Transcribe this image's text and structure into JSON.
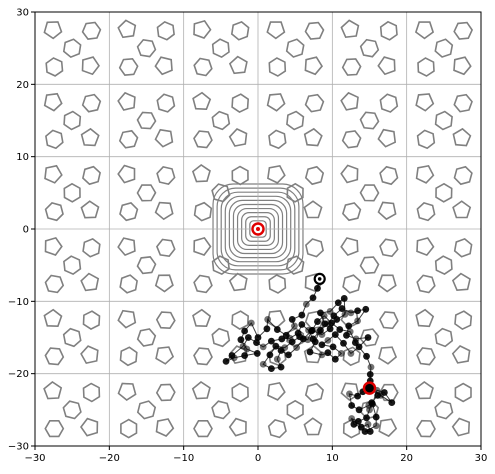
{
  "chart_data": {
    "type": "scatter",
    "title": "",
    "xlabel": "",
    "ylabel": "",
    "xlim": [
      -30,
      30
    ],
    "ylim": [
      -30,
      30
    ],
    "x_ticks": [
      -30,
      -20,
      -10,
      0,
      10,
      20,
      30
    ],
    "y_ticks": [
      -30,
      -20,
      -10,
      0,
      10,
      20,
      30
    ],
    "grid": true,
    "background": {
      "description": "gray contour lines of a quasi-periodic landscape with a concentric minimum at the origin",
      "contour_color": "#808080",
      "basin_center": [
        0,
        0
      ],
      "tile_period": 10
    },
    "colors": {
      "path": "#000000",
      "contour": "#808080",
      "grid": "#b0b0b0",
      "marker_ring": "#e00000"
    },
    "markers": [
      {
        "name": "start",
        "point": [
          8.3,
          -6.9
        ],
        "style": "black-ring"
      },
      {
        "name": "goal",
        "point": [
          0,
          0
        ],
        "style": "red-target"
      },
      {
        "name": "end",
        "point": [
          15,
          -22
        ],
        "style": "red-ring"
      }
    ],
    "series": [
      {
        "values": [
          [
            8.3,
            -6.9
          ],
          [
            8.0,
            -8.2
          ],
          [
            7.4,
            -9.5
          ],
          [
            6.5,
            -10.4
          ],
          [
            5.9,
            -11.9
          ],
          [
            4.6,
            -12.5
          ],
          [
            4.9,
            -13.4
          ],
          [
            3.8,
            -14.7
          ],
          [
            2.6,
            -13.9
          ],
          [
            1.3,
            -12.5
          ],
          [
            1.2,
            -13.8
          ],
          [
            0.0,
            -15.0
          ],
          [
            -0.9,
            -13.0
          ],
          [
            -1.8,
            -14.1
          ],
          [
            -2.3,
            -15.3
          ],
          [
            -1.5,
            -16.6
          ],
          [
            -0.1,
            -17.2
          ],
          [
            -1.8,
            -17.5
          ],
          [
            -3.2,
            -17.8
          ],
          [
            -4.3,
            -18.3
          ],
          [
            -3.5,
            -17.5
          ],
          [
            -2.0,
            -16.2
          ],
          [
            -1.3,
            -15.0
          ],
          [
            -0.2,
            -15.7
          ],
          [
            0.7,
            -16.3
          ],
          [
            1.8,
            -15.5
          ],
          [
            3.2,
            -15.2
          ],
          [
            4.3,
            -15.1
          ],
          [
            5.4,
            -14.4
          ],
          [
            5.9,
            -13.2
          ],
          [
            6.8,
            -14.0
          ],
          [
            7.4,
            -15.2
          ],
          [
            8.4,
            -14.0
          ],
          [
            9.4,
            -13.1
          ],
          [
            10.2,
            -12.0
          ],
          [
            11.3,
            -11.0
          ],
          [
            12.5,
            -11.6
          ],
          [
            13.4,
            -11.3
          ],
          [
            14.5,
            -11.1
          ],
          [
            13.4,
            -12.7
          ],
          [
            12.2,
            -13.4
          ],
          [
            11.9,
            -14.7
          ],
          [
            13.2,
            -15.2
          ],
          [
            14.8,
            -15.0
          ],
          [
            13.6,
            -16.3
          ],
          [
            12.5,
            -17.2
          ],
          [
            11.5,
            -15.8
          ],
          [
            10.4,
            -14.6
          ],
          [
            9.4,
            -15.4
          ],
          [
            8.6,
            -16.0
          ],
          [
            10.1,
            -16.3
          ],
          [
            11.2,
            -17.2
          ],
          [
            10.4,
            -18.0
          ],
          [
            9.4,
            -17.1
          ],
          [
            8.6,
            -17.4
          ],
          [
            7.0,
            -17.0
          ],
          [
            7.7,
            -15.6
          ],
          [
            8.2,
            -14.2
          ],
          [
            9.0,
            -13.1
          ],
          [
            8.4,
            -11.6
          ],
          [
            9.7,
            -11.4
          ],
          [
            10.8,
            -10.2
          ],
          [
            11.6,
            -9.6
          ],
          [
            11.7,
            -11.8
          ],
          [
            10.6,
            -12.5
          ],
          [
            9.7,
            -13.8
          ],
          [
            8.6,
            -14.6
          ],
          [
            7.3,
            -14.0
          ],
          [
            6.1,
            -15.2
          ],
          [
            5.2,
            -16.4
          ],
          [
            4.1,
            -17.4
          ],
          [
            3.1,
            -16.8
          ],
          [
            2.6,
            -18.0
          ],
          [
            3.1,
            -19.1
          ],
          [
            1.8,
            -19.3
          ],
          [
            0.7,
            -18.7
          ],
          [
            1.6,
            -17.4
          ],
          [
            2.4,
            -16.2
          ],
          [
            3.6,
            -16.4
          ],
          [
            4.6,
            -15.6
          ],
          [
            5.6,
            -14.9
          ],
          [
            6.7,
            -15.3
          ],
          [
            7.2,
            -14.1
          ],
          [
            8.0,
            -12.8
          ],
          [
            8.9,
            -12.0
          ],
          [
            9.9,
            -13.0
          ],
          [
            11.0,
            -13.9
          ],
          [
            12.4,
            -14.2
          ],
          [
            13.1,
            -15.7
          ],
          [
            14.6,
            -17.6
          ],
          [
            15.2,
            -19.1
          ],
          [
            15.1,
            -20.1
          ],
          [
            15.1,
            -21.0
          ],
          [
            15.0,
            -22.0
          ],
          [
            14.1,
            -22.5
          ],
          [
            13.4,
            -23.1
          ],
          [
            12.3,
            -22.8
          ],
          [
            12.6,
            -24.4
          ],
          [
            13.6,
            -25.0
          ],
          [
            14.9,
            -24.4
          ],
          [
            16.1,
            -23.0
          ],
          [
            15.3,
            -24.0
          ],
          [
            15.0,
            -25.0
          ],
          [
            14.6,
            -26.1
          ],
          [
            13.5,
            -26.6
          ],
          [
            12.6,
            -26.2
          ],
          [
            12.9,
            -27.0
          ],
          [
            13.9,
            -27.4
          ],
          [
            14.8,
            -27.0
          ],
          [
            15.1,
            -28.0
          ],
          [
            14.4,
            -28.0
          ],
          [
            15.9,
            -27.2
          ],
          [
            15.9,
            -26.0
          ],
          [
            15.4,
            -24.2
          ],
          [
            16.0,
            -22.3
          ],
          [
            17.0,
            -22.6
          ],
          [
            18.0,
            -24.0
          ],
          [
            16.5,
            -23.0
          ],
          [
            15.0,
            -22.0
          ]
        ]
      }
    ]
  }
}
